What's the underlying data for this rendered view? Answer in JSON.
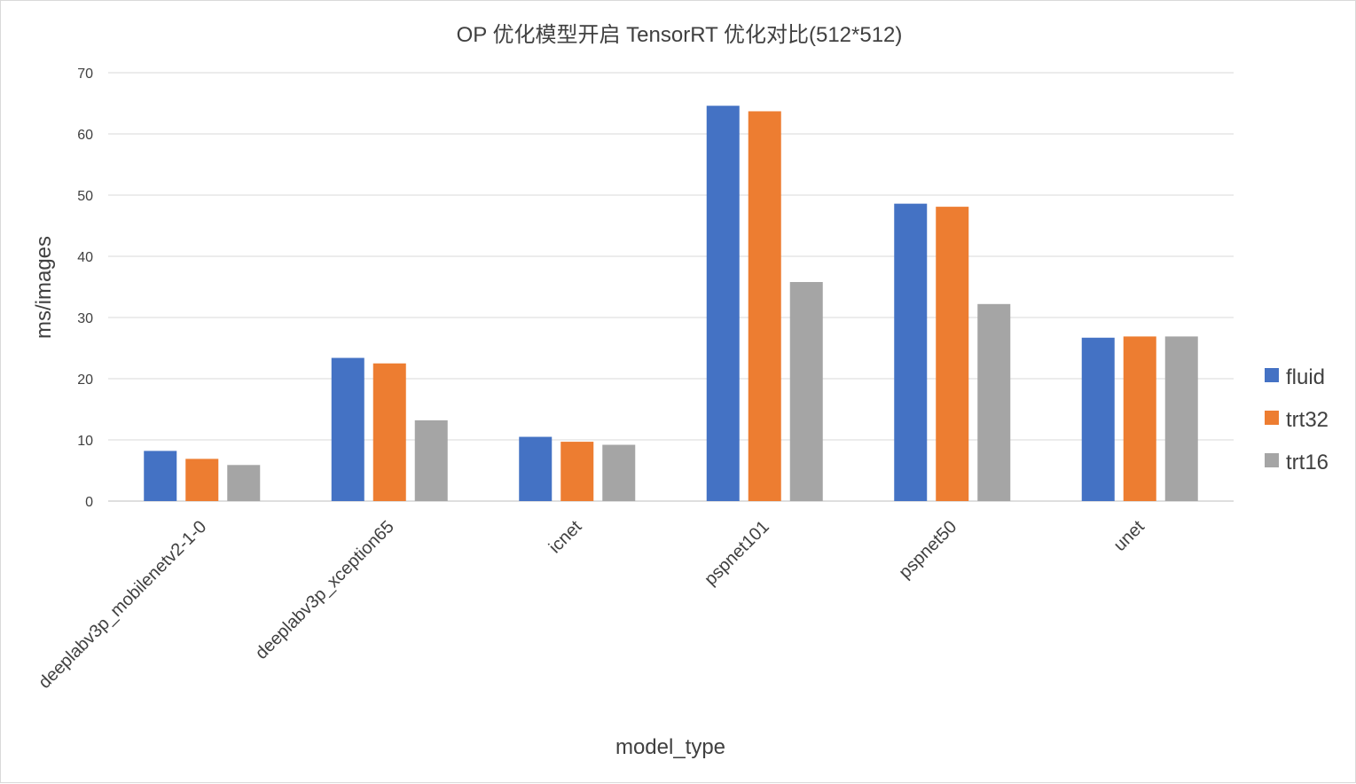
{
  "chart_data": {
    "type": "bar",
    "title": "OP 优化模型开启 TensorRT 优化对比(512*512)",
    "xlabel": "model_type",
    "ylabel": "ms/images",
    "ylim": [
      0,
      70
    ],
    "yticks": [
      0,
      10,
      20,
      30,
      40,
      50,
      60,
      70
    ],
    "grid": true,
    "legend_position": "right",
    "categories": [
      "deeplabv3p_mobilenetv2-1-0",
      "deeplabv3p_xception65",
      "icnet",
      "pspnet101",
      "pspnet50",
      "unet"
    ],
    "series": [
      {
        "name": "fluid",
        "color": "#4472c4",
        "values": [
          8.2,
          23.4,
          10.5,
          64.6,
          48.6,
          26.7
        ]
      },
      {
        "name": "trt32",
        "color": "#ed7d31",
        "values": [
          6.9,
          22.5,
          9.7,
          63.7,
          48.1,
          26.9
        ]
      },
      {
        "name": "trt16",
        "color": "#a5a5a5",
        "values": [
          5.9,
          13.2,
          9.2,
          35.8,
          32.2,
          26.9
        ]
      }
    ]
  }
}
